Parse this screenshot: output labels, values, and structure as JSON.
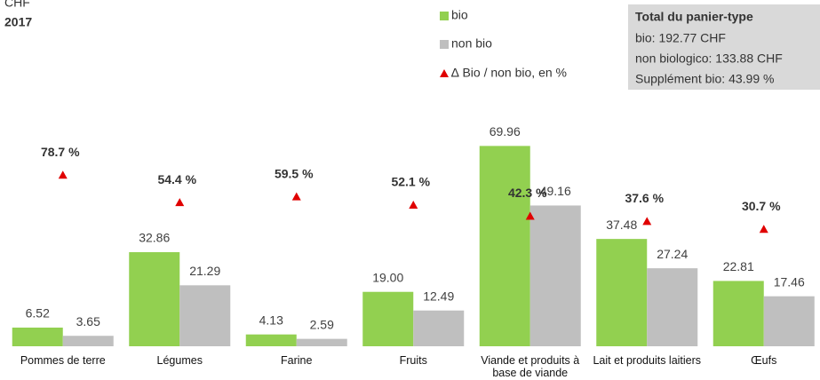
{
  "chart_data": {
    "type": "bar",
    "unit_label": "CHF",
    "subtitle": "2017",
    "categories": [
      "Pommes de terre",
      "Légumes",
      "Farine",
      "Fruits",
      "Viande et produits à base de viande",
      "Lait et produits laitiers",
      "Œufs"
    ],
    "series": [
      {
        "name": "bio",
        "color": "#92d050",
        "values": [
          6.52,
          32.86,
          4.13,
          19.0,
          69.96,
          37.48,
          22.81
        ],
        "value_labels": [
          "6.52",
          "32.86",
          "4.13",
          "19.00",
          "69.96",
          "37.48",
          "22.81"
        ]
      },
      {
        "name": "non bio",
        "color": "#bfbfbf",
        "values": [
          3.65,
          21.29,
          2.59,
          12.49,
          49.16,
          27.24,
          17.46
        ],
        "value_labels": [
          "3.65",
          "21.29",
          "2.59",
          "12.49",
          "49.16",
          "27.24",
          "17.46"
        ]
      },
      {
        "name": "∆ Bio / non bio, en %",
        "color": "#e00000",
        "type": "marker",
        "axis": "y2",
        "values": [
          78.7,
          54.4,
          59.5,
          52.1,
          42.3,
          37.6,
          30.7
        ],
        "value_labels": [
          "78.7 %",
          "54.4 %",
          "59.5 %",
          "52.1 %",
          "42.3 %",
          "37.6 %",
          "30.7 %"
        ]
      }
    ],
    "ylim": [
      0,
      80
    ],
    "y2lim": [
      -73,
      130
    ],
    "legend": "top",
    "annotation": {
      "title": "Total du panier-type",
      "lines": [
        "bio: 192.77 CHF",
        "non biologico: 133.88 CHF",
        "Supplément bio: 43.99 %"
      ]
    }
  }
}
